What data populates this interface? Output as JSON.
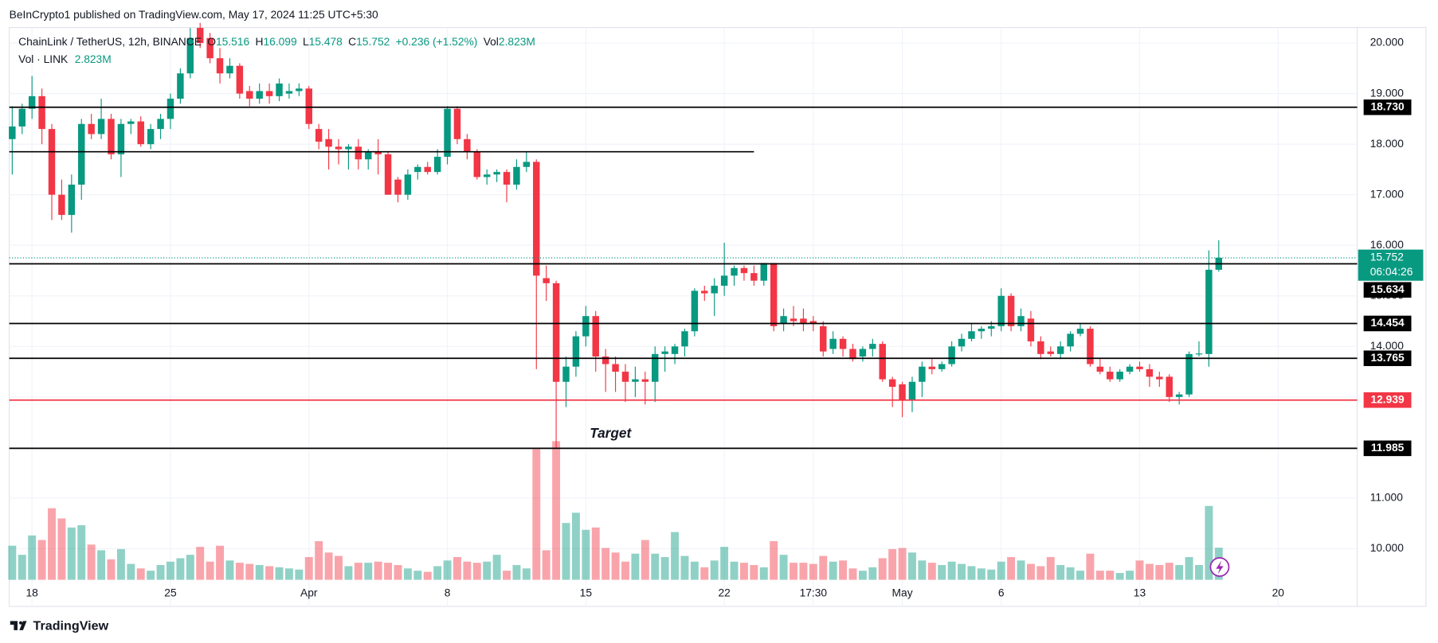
{
  "published": "BeInCrypto1 published on TradingView.com, May 17, 2024 11:25 UTC+5:30",
  "footer": "TradingView",
  "chart_data": {
    "type": "candlestick",
    "title": "ChainLink / TetherUS, 12h, BINANCE",
    "ohlc_labels": [
      "O",
      "H",
      "L",
      "C"
    ],
    "change": "+0.236 (+1.52%)",
    "volume_label": "Vol",
    "volume_text": "2.823M",
    "volume_legend": "Vol · LINK",
    "annotation": "Target",
    "countdown": "06:04:26",
    "up_color": "#089981",
    "down_color": "#f23645",
    "grid": true,
    "xlim": [
      -0.3,
      136
    ],
    "xticks": [
      {
        "value": 2,
        "label": "18"
      },
      {
        "value": 16,
        "label": "25"
      },
      {
        "value": 30,
        "label": "Apr"
      },
      {
        "value": 44,
        "label": "8"
      },
      {
        "value": 58,
        "label": "15"
      },
      {
        "value": 72,
        "label": "22"
      },
      {
        "value": 81,
        "label": "17:30"
      },
      {
        "value": 90,
        "label": "May"
      },
      {
        "value": 100,
        "label": "6"
      },
      {
        "value": 114,
        "label": "13"
      },
      {
        "value": 128,
        "label": "20"
      }
    ],
    "ylim": [
      9.384,
      20.308
    ],
    "yticks": [
      {
        "value": 10,
        "label": "10.000"
      },
      {
        "value": 11,
        "label": "11.000"
      },
      {
        "value": 12,
        "label": "12.000"
      },
      {
        "value": 13,
        "label": "13.000"
      },
      {
        "value": 14,
        "label": "14.000"
      },
      {
        "value": 15,
        "label": "15.000"
      },
      {
        "value": 16,
        "label": "16.000"
      },
      {
        "value": 17,
        "label": "17.000"
      },
      {
        "value": 18,
        "label": "18.000"
      },
      {
        "value": 19,
        "label": "19.000"
      },
      {
        "value": 20,
        "label": "20.000"
      }
    ],
    "volume_lim": [
      0,
      48.6
    ],
    "levels": [
      {
        "value": 18.73,
        "label": "18.730",
        "color": "#000000"
      },
      {
        "value": 15.634,
        "label": "15.634",
        "color": "#000000"
      },
      {
        "value": 14.454,
        "label": "14.454",
        "color": "#000000"
      },
      {
        "value": 13.765,
        "label": "13.765",
        "color": "#000000"
      },
      {
        "value": 12.939,
        "label": "12.939",
        "color": "#f23645"
      },
      {
        "value": 11.985,
        "label": "11.985",
        "color": "#000000"
      }
    ],
    "segments": [
      {
        "value": 17.85,
        "to": 75
      }
    ],
    "candles": [
      [
        18.1,
        18.75,
        17.4,
        18.35
      ],
      [
        18.35,
        18.8,
        18.2,
        18.7
      ],
      [
        18.7,
        19.35,
        18.5,
        18.95
      ],
      [
        18.95,
        19.1,
        18.0,
        18.3
      ],
      [
        18.3,
        18.4,
        16.5,
        17.0
      ],
      [
        17.0,
        17.3,
        16.5,
        16.6
      ],
      [
        16.6,
        17.4,
        16.25,
        17.2
      ],
      [
        17.2,
        18.5,
        16.9,
        18.4
      ],
      [
        18.4,
        18.6,
        18.1,
        18.2
      ],
      [
        18.2,
        18.9,
        18.1,
        18.5
      ],
      [
        18.5,
        18.6,
        17.7,
        17.8
      ],
      [
        17.8,
        18.5,
        17.35,
        18.4
      ],
      [
        18.4,
        18.5,
        18.2,
        18.45
      ],
      [
        18.45,
        18.55,
        17.95,
        18.0
      ],
      [
        18.0,
        18.4,
        17.9,
        18.3
      ],
      [
        18.3,
        18.6,
        18.1,
        18.5
      ],
      [
        18.5,
        19.0,
        18.3,
        18.9
      ],
      [
        18.9,
        19.5,
        18.8,
        19.4
      ],
      [
        19.4,
        20.3,
        19.3,
        20.1
      ],
      [
        20.3,
        20.4,
        19.9,
        20.0
      ],
      [
        20.1,
        20.2,
        19.6,
        19.7
      ],
      [
        19.7,
        19.9,
        19.2,
        19.4
      ],
      [
        19.4,
        19.7,
        19.3,
        19.55
      ],
      [
        19.55,
        19.6,
        18.9,
        19.0
      ],
      [
        19.05,
        19.15,
        18.75,
        18.9
      ],
      [
        18.9,
        19.2,
        18.8,
        19.05
      ],
      [
        19.05,
        19.2,
        18.8,
        18.95
      ],
      [
        18.95,
        19.3,
        18.85,
        19.2
      ],
      [
        19.0,
        19.2,
        18.9,
        19.05
      ],
      [
        19.05,
        19.2,
        18.95,
        19.1
      ],
      [
        19.1,
        19.15,
        18.3,
        18.4
      ],
      [
        18.3,
        18.4,
        17.9,
        18.05
      ],
      [
        18.1,
        18.3,
        17.5,
        17.95
      ],
      [
        17.95,
        18.1,
        17.6,
        17.9
      ],
      [
        17.9,
        18.0,
        17.5,
        17.95
      ],
      [
        17.95,
        18.1,
        17.5,
        17.7
      ],
      [
        17.7,
        17.9,
        17.5,
        17.85
      ],
      [
        17.85,
        18.1,
        17.4,
        17.8
      ],
      [
        17.8,
        17.85,
        17.0,
        17.0
      ],
      [
        17.3,
        17.35,
        16.85,
        17.0
      ],
      [
        17.0,
        17.5,
        16.9,
        17.4
      ],
      [
        17.45,
        17.6,
        17.3,
        17.55
      ],
      [
        17.55,
        17.65,
        17.4,
        17.45
      ],
      [
        17.45,
        17.9,
        17.4,
        17.75
      ],
      [
        17.75,
        18.75,
        17.6,
        18.7
      ],
      [
        18.7,
        18.75,
        18.0,
        18.1
      ],
      [
        18.1,
        18.2,
        17.7,
        17.85
      ],
      [
        17.85,
        17.9,
        17.3,
        17.35
      ],
      [
        17.35,
        17.5,
        17.2,
        17.4
      ],
      [
        17.4,
        17.5,
        17.25,
        17.45
      ],
      [
        17.45,
        17.5,
        16.85,
        17.2
      ],
      [
        17.2,
        17.7,
        17.1,
        17.55
      ],
      [
        17.55,
        17.85,
        17.45,
        17.65
      ],
      [
        17.65,
        17.7,
        13.55,
        15.4
      ],
      [
        15.35,
        15.6,
        14.9,
        15.25
      ],
      [
        15.25,
        15.3,
        12.0,
        13.3
      ],
      [
        13.3,
        13.8,
        12.8,
        13.6
      ],
      [
        13.6,
        14.3,
        13.4,
        14.2
      ],
      [
        14.2,
        14.8,
        14.0,
        14.6
      ],
      [
        14.6,
        14.7,
        13.5,
        13.8
      ],
      [
        13.8,
        13.95,
        13.1,
        13.65
      ],
      [
        13.65,
        13.8,
        13.1,
        13.5
      ],
      [
        13.5,
        13.65,
        12.9,
        13.3
      ],
      [
        13.3,
        13.6,
        13.0,
        13.35
      ],
      [
        13.35,
        13.5,
        12.85,
        13.3
      ],
      [
        13.3,
        14.0,
        12.9,
        13.85
      ],
      [
        13.85,
        14.0,
        13.5,
        13.9
      ],
      [
        13.85,
        14.05,
        13.65,
        14.0
      ],
      [
        14.0,
        14.35,
        13.8,
        14.3
      ],
      [
        14.3,
        15.15,
        14.2,
        15.1
      ],
      [
        15.1,
        15.2,
        14.9,
        15.05
      ],
      [
        15.05,
        15.35,
        14.6,
        15.2
      ],
      [
        15.2,
        16.05,
        15.0,
        15.4
      ],
      [
        15.4,
        15.6,
        15.2,
        15.55
      ],
      [
        15.55,
        15.6,
        15.3,
        15.45
      ],
      [
        15.45,
        15.6,
        15.2,
        15.3
      ],
      [
        15.3,
        15.65,
        15.2,
        15.65
      ],
      [
        15.65,
        15.65,
        14.3,
        14.4
      ],
      [
        14.45,
        14.75,
        14.3,
        14.6
      ],
      [
        14.55,
        14.8,
        14.4,
        14.5
      ],
      [
        14.55,
        14.75,
        14.3,
        14.45
      ],
      [
        14.5,
        14.6,
        14.3,
        14.45
      ],
      [
        14.4,
        14.5,
        13.8,
        13.9
      ],
      [
        13.95,
        14.3,
        13.85,
        14.15
      ],
      [
        14.15,
        14.2,
        13.8,
        13.95
      ],
      [
        13.95,
        14.05,
        13.7,
        13.75
      ],
      [
        13.8,
        14.0,
        13.7,
        13.95
      ],
      [
        13.95,
        14.15,
        13.8,
        14.05
      ],
      [
        14.05,
        14.1,
        13.3,
        13.35
      ],
      [
        13.35,
        13.4,
        12.8,
        13.2
      ],
      [
        13.25,
        13.3,
        12.6,
        12.95
      ],
      [
        12.95,
        13.4,
        12.7,
        13.3
      ],
      [
        13.3,
        13.7,
        13.0,
        13.6
      ],
      [
        13.6,
        13.75,
        13.45,
        13.55
      ],
      [
        13.55,
        13.7,
        13.5,
        13.65
      ],
      [
        13.65,
        14.1,
        13.6,
        14.0
      ],
      [
        14.0,
        14.25,
        13.9,
        14.15
      ],
      [
        14.15,
        14.45,
        14.1,
        14.3
      ],
      [
        14.3,
        14.4,
        14.15,
        14.35
      ],
      [
        14.35,
        14.5,
        14.2,
        14.4
      ],
      [
        14.4,
        15.15,
        14.3,
        15.0
      ],
      [
        15.0,
        15.05,
        14.3,
        14.4
      ],
      [
        14.4,
        14.75,
        14.3,
        14.6
      ],
      [
        14.55,
        14.7,
        14.0,
        14.1
      ],
      [
        14.1,
        14.2,
        13.75,
        13.85
      ],
      [
        13.9,
        14.0,
        13.8,
        13.85
      ],
      [
        13.85,
        14.1,
        13.75,
        14.0
      ],
      [
        14.0,
        14.3,
        13.9,
        14.25
      ],
      [
        14.25,
        14.45,
        14.2,
        14.35
      ],
      [
        14.35,
        14.4,
        13.6,
        13.65
      ],
      [
        13.6,
        13.75,
        13.45,
        13.5
      ],
      [
        13.5,
        13.6,
        13.3,
        13.35
      ],
      [
        13.35,
        13.55,
        13.3,
        13.5
      ],
      [
        13.5,
        13.65,
        13.45,
        13.6
      ],
      [
        13.6,
        13.7,
        13.5,
        13.55
      ],
      [
        13.55,
        13.65,
        13.2,
        13.4
      ],
      [
        13.4,
        13.5,
        13.2,
        13.35
      ],
      [
        13.4,
        13.45,
        12.9,
        13.0
      ],
      [
        13.0,
        13.1,
        12.85,
        13.05
      ],
      [
        13.05,
        13.9,
        13.0,
        13.85
      ],
      [
        13.85,
        14.1,
        13.8,
        13.86
      ],
      [
        13.85,
        15.9,
        13.6,
        15.516
      ],
      [
        15.516,
        16.099,
        15.478,
        15.752
      ]
    ],
    "volumes": [
      3.0,
      2.2,
      3.9,
      3.5,
      6.3,
      5.4,
      4.6,
      4.8,
      3.1,
      2.6,
      1.8,
      2.7,
      1.4,
      1.0,
      0.8,
      1.3,
      1.6,
      1.9,
      2.2,
      2.9,
      1.6,
      3.0,
      1.7,
      1.5,
      1.4,
      1.3,
      1.2,
      1.1,
      1.0,
      0.9,
      2.0,
      3.4,
      2.4,
      2.1,
      1.2,
      1.5,
      1.5,
      1.6,
      1.5,
      1.3,
      1.0,
      0.8,
      0.7,
      1.2,
      1.7,
      2.0,
      1.6,
      1.5,
      1.6,
      2.2,
      0.8,
      1.3,
      1.0,
      11.5,
      2.6,
      12.2,
      5.0,
      5.9,
      4.4,
      4.6,
      2.8,
      2.4,
      1.6,
      2.3,
      3.5,
      2.3,
      2.0,
      4.2,
      2.1,
      1.6,
      1.1,
      1.7,
      2.9,
      1.6,
      1.5,
      1.3,
      1.1,
      3.4,
      2.2,
      1.5,
      1.5,
      1.4,
      2.1,
      1.6,
      1.7,
      1.0,
      0.8,
      1.1,
      1.9,
      2.7,
      2.8,
      2.4,
      1.7,
      1.5,
      1.3,
      1.6,
      1.4,
      1.2,
      1.0,
      0.9,
      1.6,
      2.0,
      1.7,
      1.4,
      1.2,
      2.0,
      1.3,
      1.1,
      0.8,
      2.3,
      0.8,
      0.8,
      0.6,
      0.8,
      1.7,
      1.4,
      1.3,
      1.5,
      1.3,
      2.0,
      1.3,
      6.5,
      2.823
    ]
  }
}
